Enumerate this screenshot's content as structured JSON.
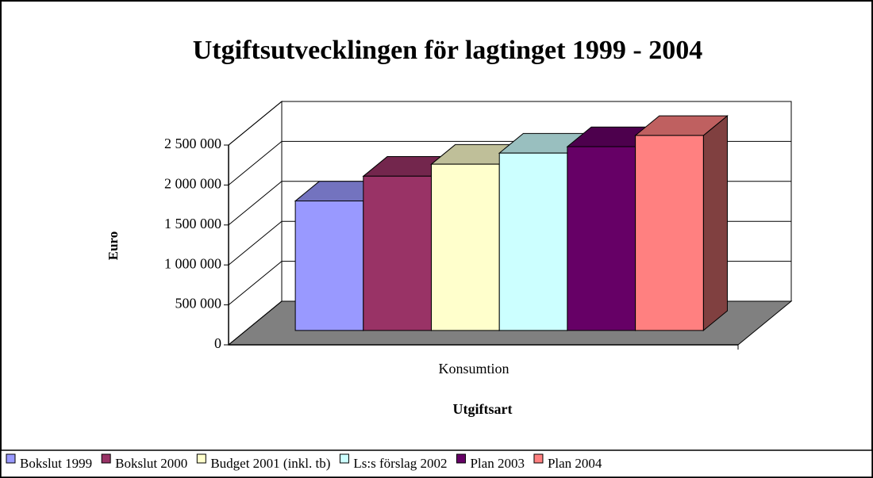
{
  "chart_data": {
    "type": "bar3d",
    "title": "Utgiftsutvecklingen för lagtinget 1999 - 2004",
    "y_label": "Euro",
    "x_label": "Utgiftsart",
    "categories": [
      "Konsumtion"
    ],
    "series": [
      {
        "name": "Bokslut 1999",
        "color": "#9999ff",
        "values": [
          1620000
        ]
      },
      {
        "name": "Bokslut 2000",
        "color": "#993366",
        "values": [
          1930000
        ]
      },
      {
        "name": "Budget 2001 (inkl. tb)",
        "color": "#ffffcc",
        "values": [
          2080000
        ]
      },
      {
        "name": "Ls:s förslag 2002",
        "color": "#ccffff",
        "values": [
          2220000
        ]
      },
      {
        "name": "Plan 2003",
        "color": "#660066",
        "values": [
          2300000
        ]
      },
      {
        "name": "Plan 2004",
        "color": "#ff8080",
        "values": [
          2440000
        ]
      }
    ],
    "ylim": [
      0,
      2500000
    ],
    "yticks": [
      0,
      {
        "value": 500000,
        "label": "500 000"
      },
      {
        "value": 1000000,
        "label": "1 000 000"
      },
      {
        "value": 1500000,
        "label": "1 500 000"
      },
      {
        "value": 2000000,
        "label": "2 000 000"
      },
      {
        "value": 2500000,
        "label": "2 500 000"
      }
    ],
    "grid": true,
    "legend": "bottom"
  }
}
